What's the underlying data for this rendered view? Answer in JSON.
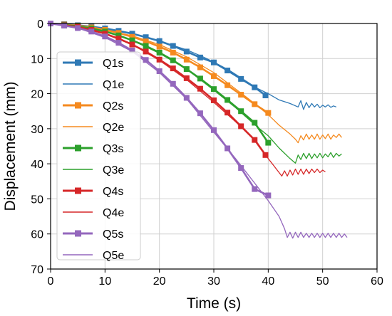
{
  "chart_data": {
    "type": "line",
    "xlabel": "Time (s)",
    "ylabel": "Displacement (mm)",
    "xlim": [
      0,
      60
    ],
    "ylim": [
      0,
      70
    ],
    "y_inverted": true,
    "x_ticks": [
      0,
      10,
      20,
      30,
      40,
      50,
      60
    ],
    "y_ticks": [
      0,
      10,
      20,
      30,
      40,
      50,
      60,
      70
    ],
    "grid": true,
    "legend_position": "left",
    "series": [
      {
        "name": "Q1s",
        "style": "line-square-markers",
        "color": "#2f79b5",
        "x": [
          0,
          2.5,
          5,
          7.5,
          10,
          12.5,
          15,
          17.5,
          20,
          22.5,
          25,
          27.5,
          30,
          32.5,
          35,
          37.5,
          39.5
        ],
        "y": [
          0,
          0.2,
          0.5,
          0.9,
          1.4,
          2.1,
          2.9,
          3.9,
          5.0,
          6.4,
          8.0,
          9.7,
          11.1,
          13.4,
          15.8,
          18.2,
          20.5
        ]
      },
      {
        "name": "Q1e",
        "style": "thin-line",
        "color": "#2f79b5",
        "x": [
          0,
          5,
          10,
          15,
          20,
          25,
          28,
          30,
          33,
          36,
          38,
          40,
          42,
          44,
          45.5,
          46,
          46.5,
          47,
          47.5,
          48,
          48.5,
          49,
          49.5,
          50,
          50.5,
          51,
          51.5,
          52,
          52.5
        ],
        "y": [
          0,
          0.5,
          1.5,
          3.0,
          5.0,
          7.5,
          9.5,
          11.0,
          13.5,
          16.5,
          18.5,
          20.0,
          21.8,
          22.8,
          23.8,
          22.0,
          24.5,
          22.5,
          24.0,
          22.8,
          23.8,
          23.0,
          24.0,
          23.3,
          23.8,
          23.2,
          23.9,
          23.5,
          23.8
        ]
      },
      {
        "name": "Q2s",
        "style": "line-square-markers",
        "color": "#f58a1f",
        "x": [
          0,
          2.5,
          5,
          7.5,
          10,
          12.5,
          15,
          17.5,
          20,
          22.5,
          25,
          27.5,
          30,
          32.5,
          35,
          37.5,
          40
        ],
        "y": [
          0,
          0.3,
          0.6,
          1.1,
          1.8,
          2.7,
          3.8,
          5.1,
          6.6,
          8.3,
          10.3,
          12.5,
          15.0,
          17.6,
          20.3,
          23.0,
          25.5
        ]
      },
      {
        "name": "Q2e",
        "style": "thin-line",
        "color": "#f58a1f",
        "x": [
          0,
          5,
          10,
          15,
          20,
          25,
          30,
          33,
          36,
          38,
          40,
          42,
          44,
          45,
          45.5,
          46,
          46.5,
          47,
          47.5,
          48,
          48.5,
          49,
          49.5,
          50,
          50.5,
          51,
          51.5,
          52,
          52.5,
          53,
          53.5
        ],
        "y": [
          0,
          0.6,
          1.8,
          3.5,
          6.0,
          9.5,
          14.0,
          17.5,
          21.0,
          23.5,
          26.0,
          29.0,
          31.5,
          33.0,
          34.0,
          32.0,
          33.2,
          31.5,
          33.0,
          31.8,
          33.0,
          31.5,
          33.0,
          31.8,
          32.8,
          31.5,
          33.0,
          31.8,
          32.5,
          31.5,
          32.5
        ]
      },
      {
        "name": "Q3s",
        "style": "line-square-markers",
        "color": "#2ca02c",
        "x": [
          0,
          2.5,
          5,
          7.5,
          10,
          12.5,
          15,
          17.5,
          20,
          22.5,
          25,
          27.5,
          30,
          32.5,
          35,
          37.5,
          40
        ],
        "y": [
          0,
          0.4,
          0.8,
          1.4,
          2.3,
          3.4,
          4.8,
          6.4,
          8.3,
          10.5,
          13.0,
          15.7,
          18.7,
          21.8,
          25.0,
          28.3,
          34.0
        ]
      },
      {
        "name": "Q3e",
        "style": "thin-line",
        "color": "#2ca02c",
        "x": [
          0,
          5,
          10,
          15,
          20,
          25,
          30,
          34,
          38,
          40,
          42,
          44,
          45,
          45.5,
          46,
          46.5,
          47,
          47.5,
          48,
          48.5,
          49,
          49.5,
          50,
          50.5,
          51,
          51.5,
          52,
          52.5,
          53,
          53.5
        ],
        "y": [
          0,
          0.8,
          2.3,
          4.8,
          8.5,
          13.0,
          19.0,
          24.0,
          29.5,
          32.0,
          35.5,
          38.5,
          39.8,
          37.5,
          38.8,
          37.0,
          38.5,
          37.0,
          38.5,
          37.2,
          38.3,
          37.0,
          38.3,
          37.2,
          38.0,
          36.8,
          38.2,
          37.0,
          37.8,
          37.2
        ]
      },
      {
        "name": "Q4s",
        "style": "line-square-markers",
        "color": "#d62728",
        "x": [
          0,
          2.5,
          5,
          7.5,
          10,
          12.5,
          15,
          17.5,
          20,
          22.5,
          25,
          27.5,
          30,
          32.5,
          35,
          37.5,
          39.5
        ],
        "y": [
          0,
          0.5,
          1.0,
          1.8,
          2.9,
          4.3,
          6.0,
          8.0,
          10.3,
          12.8,
          15.6,
          18.6,
          21.9,
          25.4,
          29.3,
          33.2,
          37.5
        ]
      },
      {
        "name": "Q4e",
        "style": "thin-line",
        "color": "#d62728",
        "x": [
          0,
          5,
          10,
          15,
          20,
          25,
          30,
          34,
          38,
          40,
          41,
          42,
          42.5,
          43,
          43.5,
          44,
          44.5,
          45,
          45.5,
          46,
          46.5,
          47,
          47.5,
          48,
          48.5,
          49,
          49.5,
          50,
          50.5
        ],
        "y": [
          0,
          1.0,
          3.0,
          6.0,
          10.5,
          16.0,
          22.5,
          28.0,
          34.0,
          38.5,
          40.5,
          42.5,
          43.5,
          42.0,
          43.5,
          41.8,
          43.2,
          41.5,
          43.0,
          41.5,
          43.0,
          41.5,
          42.8,
          41.5,
          42.5,
          41.5,
          42.5,
          41.8,
          42.3
        ]
      },
      {
        "name": "Q5s",
        "style": "line-square-markers",
        "color": "#9467bd",
        "x": [
          0,
          2.5,
          5,
          7.5,
          10,
          12.5,
          15,
          17.5,
          20,
          22.5,
          25,
          27.5,
          30,
          32.5,
          35,
          37.5,
          40
        ],
        "y": [
          0,
          0.6,
          1.3,
          2.3,
          3.7,
          5.5,
          7.7,
          10.4,
          13.6,
          17.2,
          21.2,
          25.6,
          30.4,
          35.6,
          41.2,
          47.2,
          49.0
        ]
      },
      {
        "name": "Q5e",
        "style": "thin-line",
        "color": "#9467bd",
        "x": [
          0,
          5,
          10,
          15,
          20,
          25,
          30,
          34,
          38,
          40,
          42,
          43,
          43.5,
          44,
          44.5,
          45,
          45.5,
          46,
          46.5,
          47,
          47.5,
          48,
          48.5,
          49,
          49.5,
          50,
          50.5,
          51,
          51.5,
          52,
          52.5,
          53,
          53.5,
          54,
          54.5
        ],
        "y": [
          0,
          1.3,
          4.0,
          8.0,
          14.0,
          21.5,
          31.0,
          38.5,
          46.5,
          50.5,
          55.0,
          58.5,
          61.0,
          59.5,
          61.2,
          59.5,
          61.0,
          59.5,
          61.0,
          59.8,
          61.0,
          59.8,
          61.0,
          59.8,
          61.0,
          59.8,
          61.0,
          59.8,
          61.0,
          59.8,
          61.0,
          59.8,
          61.0,
          60.0,
          61.0
        ]
      }
    ]
  }
}
